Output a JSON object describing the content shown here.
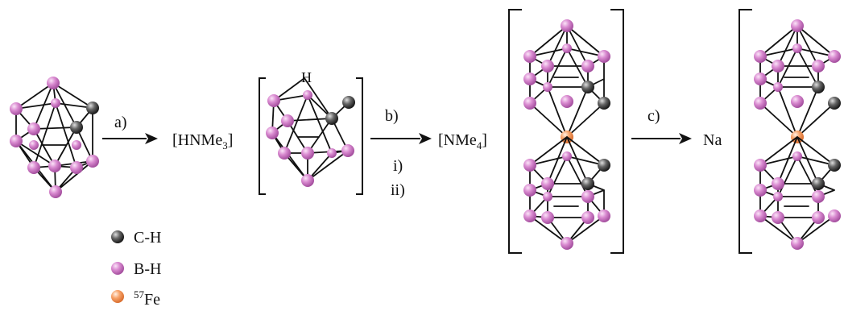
{
  "arrows": [
    {
      "label": "a)"
    },
    {
      "label": "b)",
      "sub_labels": [
        "i)",
        "ii)"
      ]
    },
    {
      "label": "c)"
    }
  ],
  "species": [
    {
      "counter_ion": "[HNMe",
      "subscript": "3",
      "close": "]"
    },
    {
      "counter_ion": "[NMe",
      "subscript": "4",
      "close": "]"
    },
    {
      "counter_ion": "Na"
    }
  ],
  "proton_label": "H",
  "legend": [
    {
      "label": "C-H",
      "color": "#4a4a4a"
    },
    {
      "label": "B-H",
      "color": "#d277c8"
    },
    {
      "superscript": "57",
      "label": "Fe",
      "color": "#f7a36a"
    }
  ],
  "colors": {
    "carbon": "#555555",
    "boron": "#d277c8",
    "iron": "#f7a36a",
    "bond": "#111111"
  }
}
